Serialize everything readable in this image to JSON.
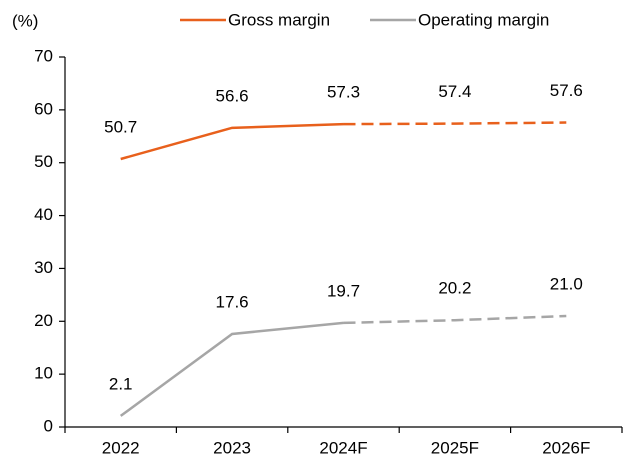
{
  "chart_data": {
    "type": "line",
    "y_label": "(%)",
    "categories": [
      "2022",
      "2023",
      "2024F",
      "2025F",
      "2026F"
    ],
    "forecast_start": "2024F",
    "series": [
      {
        "name": "Gross margin",
        "color": "#e8601c",
        "values": [
          50.7,
          56.6,
          57.3,
          57.4,
          57.6
        ],
        "value_labels": [
          "50.7",
          "56.6",
          "57.3",
          "57.4",
          "57.6"
        ]
      },
      {
        "name": "Operating margin",
        "color": "#a6a6a6",
        "values": [
          2.1,
          17.6,
          19.7,
          20.2,
          21.0
        ],
        "value_labels": [
          "2.1",
          "17.6",
          "19.7",
          "20.2",
          "21.0"
        ]
      }
    ],
    "ylim": [
      0,
      70
    ],
    "yticks": [
      0,
      10,
      20,
      30,
      40,
      50,
      60,
      70
    ],
    "grid": false,
    "legend": "top"
  }
}
